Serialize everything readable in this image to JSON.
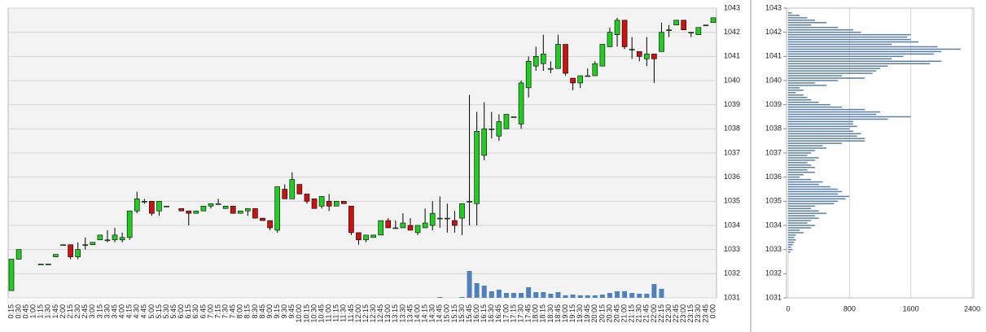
{
  "chart_data": [
    {
      "type": "candlestick",
      "categories": [
        "0:15",
        "0:30",
        "0:45",
        "1:00",
        "1:15",
        "1:30",
        "1:45",
        "2:00",
        "2:15",
        "2:30",
        "2:45",
        "3:00",
        "3:15",
        "3:30",
        "3:45",
        "4:00",
        "4:15",
        "4:30",
        "4:45",
        "5:00",
        "5:15",
        "5:30",
        "5:45",
        "6:00",
        "6:15",
        "6:30",
        "6:45",
        "7:00",
        "7:15",
        "7:30",
        "7:45",
        "8:00",
        "8:15",
        "8:30",
        "8:45",
        "9:00",
        "9:15",
        "9:30",
        "9:45",
        "10:00",
        "10:15",
        "10:30",
        "10:45",
        "11:00",
        "11:15",
        "11:30",
        "11:45",
        "12:00",
        "12:15",
        "12:30",
        "12:45",
        "13:00",
        "13:15",
        "13:30",
        "13:45",
        "14:00",
        "14:15",
        "14:30",
        "14:45",
        "15:00",
        "15:15",
        "15:30",
        "15:45",
        "16:00",
        "16:15",
        "16:30",
        "16:45",
        "17:00",
        "17:15",
        "17:30",
        "17:45",
        "18:00",
        "18:15",
        "18:30",
        "18:45",
        "19:00",
        "19:15",
        "19:30",
        "19:45",
        "20:00",
        "20:15",
        "20:30",
        "20:45",
        "21:00",
        "21:15",
        "21:30",
        "21:45",
        "22:00",
        "22:15",
        "22:30",
        "22:45",
        "23:00",
        "23:15",
        "23:30",
        "23:45",
        "0:00"
      ],
      "open": [
        1031.3,
        1032.6,
        null,
        null,
        1032.4,
        1032.4,
        1032.7,
        1033.2,
        1033.2,
        1032.7,
        1033.2,
        1033.2,
        1033.4,
        1033.4,
        1033.4,
        1033.4,
        1033.5,
        1034.6,
        1035.0,
        1035.0,
        1034.6,
        1034.8,
        null,
        1034.7,
        1034.6,
        1034.5,
        1034.6,
        1034.8,
        1034.9,
        1034.7,
        1034.8,
        1034.5,
        1034.6,
        1034.7,
        1034.3,
        1034.2,
        1033.8,
        1035.5,
        1035.1,
        1035.7,
        1035.3,
        1035.1,
        1034.8,
        1035.0,
        1034.8,
        1035.0,
        1034.8,
        1033.7,
        1033.4,
        1033.5,
        1033.6,
        1034.2,
        1033.9,
        1033.9,
        1034.0,
        1033.7,
        1033.9,
        1034.0,
        1034.3,
        1034.3,
        1034.2,
        1034.3,
        1035.0,
        1034.9,
        1036.9,
        1038.0,
        1037.7,
        1038.0,
        1038.5,
        1038.2,
        1039.7,
        1040.6,
        1040.7,
        1040.5,
        1040.5,
        1041.5,
        1040.1,
        1039.9,
        1040.2,
        1040.2,
        1040.6,
        1041.4,
        1041.9,
        1042.5,
        1041.3,
        1041.2,
        1040.9,
        1041.1,
        1041.2,
        1042.1,
        1042.3,
        1042.5,
        1042.0,
        1041.9,
        1042.3,
        1042.4
      ],
      "high": [
        1032.6,
        1033.0,
        null,
        null,
        1032.4,
        1032.4,
        1032.8,
        1033.2,
        1033.2,
        1033.3,
        1033.5,
        1033.3,
        1033.6,
        1033.8,
        1033.9,
        1033.7,
        1034.6,
        1035.4,
        1035.1,
        1035.0,
        1035.0,
        1034.8,
        null,
        1034.7,
        1034.6,
        1034.6,
        1034.8,
        1034.9,
        1035.1,
        1034.8,
        1034.8,
        1034.6,
        1034.7,
        1034.7,
        1034.3,
        1034.2,
        1035.6,
        1035.7,
        1036.2,
        1035.7,
        1035.3,
        1035.1,
        1035.2,
        1035.3,
        1035.0,
        1035.0,
        1034.8,
        1033.7,
        1033.6,
        1033.6,
        1034.2,
        1034.3,
        1034.2,
        1034.5,
        1034.3,
        1034.0,
        1034.7,
        1035.0,
        1035.2,
        1034.9,
        1034.6,
        1034.9,
        1039.4,
        1038.7,
        1039.1,
        1038.7,
        1038.6,
        1038.6,
        1038.5,
        1040.0,
        1041.0,
        1041.4,
        1041.9,
        1040.8,
        1041.9,
        1041.5,
        1040.1,
        1040.2,
        1040.5,
        1040.8,
        1041.5,
        1042.2,
        1042.6,
        1042.5,
        1041.8,
        1041.2,
        1041.8,
        1041.1,
        1042.4,
        1042.3,
        1042.5,
        1042.5,
        1042.0,
        1042.2,
        1042.3,
        1042.6
      ],
      "low": [
        1031.3,
        1032.6,
        null,
        null,
        1032.4,
        1032.4,
        1032.7,
        1033.2,
        1032.6,
        1032.6,
        1033.0,
        1033.2,
        1033.4,
        1033.3,
        1033.3,
        1033.3,
        1033.4,
        1034.5,
        1034.9,
        1034.4,
        1034.4,
        1034.8,
        null,
        1034.6,
        1034.0,
        1034.5,
        1034.6,
        1034.7,
        1034.9,
        1034.7,
        1034.5,
        1034.5,
        1034.4,
        1034.3,
        1034.2,
        1033.8,
        1033.7,
        1035.1,
        1035.1,
        1035.3,
        1034.9,
        1034.7,
        1034.7,
        1034.6,
        1034.8,
        1034.9,
        1033.6,
        1033.2,
        1033.3,
        1033.5,
        1033.6,
        1033.9,
        1033.9,
        1033.9,
        1033.8,
        1033.6,
        1033.9,
        1033.8,
        1033.9,
        1033.7,
        1033.7,
        1033.6,
        1034.0,
        1034.0,
        1036.7,
        1037.6,
        1037.5,
        1038.0,
        1038.5,
        1038.0,
        1039.3,
        1040.4,
        1040.4,
        1040.3,
        1040.5,
        1040.2,
        1039.6,
        1039.7,
        1040.2,
        1040.2,
        1040.6,
        1041.4,
        1041.4,
        1041.3,
        1040.9,
        1040.8,
        1040.6,
        1039.9,
        1041.2,
        1041.8,
        1042.3,
        1042.1,
        1041.8,
        1041.9,
        1042.3,
        1042.4
      ],
      "close": [
        1032.6,
        1033.0,
        null,
        null,
        1032.4,
        1032.4,
        1032.8,
        1033.2,
        1032.7,
        1033.0,
        1033.2,
        1033.3,
        1033.6,
        1033.4,
        1033.6,
        1033.5,
        1034.6,
        1035.1,
        1035.0,
        1034.5,
        1035.0,
        1034.8,
        null,
        1034.6,
        1034.5,
        1034.6,
        1034.8,
        1034.9,
        1034.9,
        1034.8,
        1034.5,
        1034.6,
        1034.7,
        1034.3,
        1034.2,
        1033.9,
        1035.6,
        1035.1,
        1035.9,
        1035.3,
        1035.0,
        1034.7,
        1035.2,
        1034.8,
        1035.0,
        1034.9,
        1033.7,
        1033.4,
        1033.6,
        1033.6,
        1034.2,
        1033.9,
        1033.9,
        1034.1,
        1033.8,
        1034.0,
        1034.1,
        1034.5,
        1034.3,
        1034.3,
        1034.0,
        1034.9,
        1035.0,
        1037.9,
        1038.0,
        1038.0,
        1038.3,
        1038.6,
        1038.5,
        1039.9,
        1040.8,
        1041.0,
        1041.1,
        1040.5,
        1041.5,
        1040.3,
        1039.9,
        1040.2,
        1040.2,
        1040.7,
        1041.5,
        1042.0,
        1042.5,
        1041.4,
        1041.3,
        1041.0,
        1041.1,
        1040.9,
        1042.0,
        1042.1,
        1042.5,
        1042.1,
        1042.0,
        1042.2,
        1042.3,
        1042.6
      ],
      "volume": [
        0,
        0,
        null,
        null,
        0,
        0,
        0,
        0,
        0,
        0,
        0,
        0,
        0,
        0,
        0,
        0,
        0,
        0,
        0,
        0,
        0,
        0,
        null,
        0,
        0,
        0,
        0,
        0,
        0,
        0,
        0,
        0,
        0,
        0,
        0,
        0,
        0,
        0,
        0,
        0,
        0,
        0,
        0,
        0,
        0,
        0,
        0,
        0,
        0,
        0,
        0,
        0,
        0,
        0,
        0,
        0,
        0,
        0,
        1,
        0,
        0,
        1,
        33,
        18,
        15,
        8,
        10,
        6,
        6,
        6,
        13,
        7,
        7,
        5,
        7,
        3,
        4,
        3,
        3,
        3,
        4,
        6,
        8,
        8,
        6,
        5,
        5,
        17,
        11,
        0,
        0,
        0,
        0,
        0,
        0,
        0
      ],
      "up_color": "#22cc22",
      "down_color": "#cc1111",
      "volume_color": "#4f81bd",
      "ylim": [
        1031,
        1043
      ],
      "yticks": [
        1031,
        1032,
        1033,
        1034,
        1035,
        1036,
        1037,
        1038,
        1039,
        1040,
        1041,
        1042,
        1043
      ],
      "grid": true
    },
    {
      "type": "horizontal_bar",
      "levels": [
        1042.8,
        1042.7,
        1042.6,
        1042.5,
        1042.4,
        1042.3,
        1042.2,
        1042.1,
        1042.0,
        1041.9,
        1041.8,
        1041.7,
        1041.6,
        1041.5,
        1041.4,
        1041.3,
        1041.2,
        1041.1,
        1041.0,
        1040.9,
        1040.8,
        1040.7,
        1040.6,
        1040.5,
        1040.4,
        1040.3,
        1040.2,
        1040.1,
        1040.0,
        1039.9,
        1039.8,
        1039.7,
        1039.6,
        1039.5,
        1039.4,
        1039.3,
        1039.2,
        1039.1,
        1039.0,
        1038.9,
        1038.8,
        1038.7,
        1038.6,
        1038.5,
        1038.4,
        1038.3,
        1038.2,
        1038.1,
        1038.0,
        1037.9,
        1037.8,
        1037.7,
        1037.6,
        1037.5,
        1037.4,
        1037.3,
        1037.2,
        1037.1,
        1037.0,
        1036.9,
        1036.8,
        1036.7,
        1036.6,
        1036.5,
        1036.4,
        1036.3,
        1036.2,
        1036.1,
        1036.0,
        1035.9,
        1035.8,
        1035.7,
        1035.6,
        1035.5,
        1035.4,
        1035.3,
        1035.2,
        1035.1,
        1035.0,
        1034.9,
        1034.8,
        1034.7,
        1034.6,
        1034.5,
        1034.4,
        1034.3,
        1034.2,
        1034.1,
        1034.0,
        1033.9,
        1033.8,
        1033.7,
        1033.6,
        1033.5,
        1033.4,
        1033.3,
        1033.2,
        1033.1,
        1033.0,
        1032.9
      ],
      "values": [
        50,
        150,
        250,
        350,
        500,
        300,
        650,
        850,
        950,
        1600,
        1550,
        1600,
        1700,
        1350,
        1950,
        2250,
        2000,
        1900,
        1500,
        1350,
        2000,
        1850,
        1300,
        1200,
        1150,
        1100,
        700,
        1000,
        650,
        350,
        500,
        150,
        200,
        100,
        200,
        250,
        300,
        400,
        550,
        700,
        1000,
        1200,
        1150,
        1600,
        1300,
        850,
        850,
        900,
        800,
        850,
        950,
        900,
        1000,
        1000,
        700,
        450,
        500,
        350,
        300,
        250,
        400,
        350,
        250,
        300,
        350,
        250,
        350,
        200,
        150,
        300,
        450,
        400,
        550,
        650,
        700,
        650,
        800,
        750,
        650,
        600,
        350,
        300,
        400,
        500,
        350,
        400,
        300,
        250,
        350,
        300,
        150,
        200,
        100,
        80,
        100,
        80,
        60,
        40,
        60,
        30
      ],
      "color": "#5b7fa6",
      "xlim": [
        0,
        2400
      ],
      "xticks": [
        0,
        800,
        1600,
        2400
      ],
      "ylim": [
        1031,
        1043
      ],
      "yticks": [
        1031,
        1032,
        1033,
        1034,
        1035,
        1036,
        1037,
        1038,
        1039,
        1040,
        1041,
        1042,
        1043
      ],
      "grid": true
    }
  ]
}
